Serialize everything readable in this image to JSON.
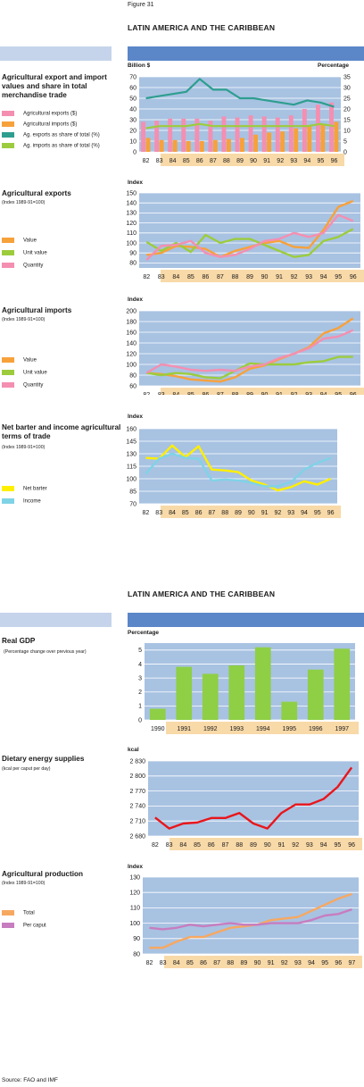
{
  "figure_label": "Figure 31",
  "region_title": "LATIN AMERICA AND THE CARIBBEAN",
  "region_title_2": "LATIN AMERICA AND THE CARIBBEAN",
  "source": "Source: FAO and IMF",
  "colors": {
    "band_blue": "#5b86c8",
    "band_pale": "#c5d4ea",
    "plot_bg": "#a8c2e2",
    "axis_bg": "#f8d9a8",
    "grid": "#ffffff"
  },
  "sections": {
    "trade": {
      "title": "Agricultural export and import values and share in total merchandise trade",
      "unit_left": "Billion $",
      "unit_right": "Percentage",
      "legend": [
        "Agricultural exports ($)",
        "Agricultural imports ($)",
        "Ag. exports as share of total (%)",
        "Ag. imports as share of total (%)"
      ],
      "legend_colors": [
        "#f48fb1",
        "#f7a13b",
        "#2e9e8f",
        "#9ccc3d"
      ]
    },
    "exports": {
      "title": "Agricultural exports",
      "subtitle": "(Index 1989-91=100)",
      "unit": "Index",
      "legend": [
        "Value",
        "Unit value",
        "Quantity"
      ],
      "legend_colors": [
        "#f7a13b",
        "#9ccc3d",
        "#f48fb1"
      ]
    },
    "imports": {
      "title": "Agricultural imports",
      "subtitle": "(Index 1989-91=100)",
      "unit": "Index",
      "legend": [
        "Value",
        "Unit value",
        "Quantity"
      ],
      "legend_colors": [
        "#f7a13b",
        "#9ccc3d",
        "#f48fb1"
      ]
    },
    "tot": {
      "title": "Net barter and income agricultural terms of trade",
      "subtitle": "(Index 1989-91=100)",
      "unit": "Index",
      "legend": [
        "Net barter",
        "Income"
      ],
      "legend_colors": [
        "#ffef00",
        "#7fd3e6"
      ]
    },
    "gdp": {
      "title": "Real GDP",
      "subtitle": "(Percentage change over previous year)",
      "unit": "Percentage"
    },
    "des": {
      "title": "Dietary energy supplies",
      "subtitle": "(kcal per caput per day)",
      "unit": "kcal"
    },
    "prod": {
      "title": "Agricultural production",
      "subtitle": "(Index 1989-91=100)",
      "unit": "Index",
      "legend": [
        "Total",
        "Per caput"
      ],
      "legend_colors": [
        "#f7a860",
        "#c77dc0"
      ]
    }
  },
  "chart_data": [
    {
      "id": "trade",
      "type": "bar",
      "categories": [
        "82",
        "83",
        "84",
        "85",
        "86",
        "87",
        "88",
        "89",
        "90",
        "91",
        "92",
        "93",
        "94",
        "95",
        "96"
      ],
      "ylim": [
        0,
        70
      ],
      "yticks": [
        0,
        10,
        20,
        30,
        40,
        50,
        60,
        70
      ],
      "y2lim": [
        0,
        35
      ],
      "y2ticks": [
        0,
        5,
        10,
        15,
        20,
        25,
        30,
        35
      ],
      "series": [
        {
          "name": "Agricultural exports ($)",
          "kind": "bar",
          "axis": "left",
          "color": "#f48fb1",
          "values": [
            28,
            29,
            31,
            31,
            31,
            29,
            33,
            32,
            34,
            33,
            32,
            34,
            40,
            44,
            46
          ]
        },
        {
          "name": "Agricultural imports ($)",
          "kind": "bar",
          "axis": "left",
          "color": "#f7a13b",
          "values": [
            13,
            11,
            11,
            10,
            10,
            11,
            12,
            13,
            16,
            18,
            19,
            22,
            24,
            26,
            28
          ]
        },
        {
          "name": "Ag. exports as share of total (%)",
          "kind": "line",
          "axis": "right",
          "color": "#2e9e8f",
          "values": [
            25,
            26,
            27,
            28,
            34,
            29,
            29,
            25,
            25,
            24,
            23,
            22,
            24,
            23,
            21
          ]
        },
        {
          "name": "Ag. imports as share of total (%)",
          "kind": "line",
          "axis": "right",
          "color": "#9ccc3d",
          "values": [
            11,
            12,
            12,
            12,
            13,
            12,
            12,
            12,
            12,
            12,
            12,
            12,
            12,
            13,
            12
          ]
        }
      ]
    },
    {
      "id": "exports",
      "type": "line",
      "categories": [
        "82",
        "83",
        "84",
        "85",
        "86",
        "87",
        "88",
        "89",
        "90",
        "91",
        "92",
        "93",
        "94",
        "95",
        "96"
      ],
      "ylim": [
        75,
        150
      ],
      "yticks": [
        80,
        90,
        100,
        110,
        120,
        130,
        140,
        150
      ],
      "series": [
        {
          "name": "Value",
          "color": "#f7a13b",
          "values": [
            88,
            90,
            97,
            96,
            94,
            86,
            92,
            96,
            100,
            102,
            96,
            95,
            113,
            136,
            142
          ]
        },
        {
          "name": "Unit value",
          "color": "#9ccc3d",
          "values": [
            101,
            92,
            100,
            91,
            108,
            100,
            104,
            104,
            98,
            92,
            86,
            88,
            102,
            106,
            114
          ]
        },
        {
          "name": "Quantity",
          "color": "#f48fb1",
          "values": [
            83,
            97,
            98,
            102,
            90,
            86,
            88,
            94,
            102,
            104,
            110,
            106,
            110,
            128,
            122
          ]
        }
      ]
    },
    {
      "id": "imports",
      "type": "line",
      "categories": [
        "82",
        "83",
        "84",
        "85",
        "86",
        "87",
        "88",
        "89",
        "90",
        "91",
        "92",
        "93",
        "94",
        "95",
        "96"
      ],
      "ylim": [
        60,
        200
      ],
      "yticks": [
        60,
        80,
        100,
        120,
        140,
        160,
        180,
        200
      ],
      "series": [
        {
          "name": "Value",
          "color": "#f7a13b",
          "values": [
            84,
            82,
            78,
            72,
            70,
            68,
            76,
            92,
            98,
            110,
            120,
            132,
            158,
            168,
            186
          ]
        },
        {
          "name": "Unit value",
          "color": "#9ccc3d",
          "values": [
            84,
            80,
            84,
            82,
            76,
            74,
            88,
            102,
            100,
            100,
            100,
            104,
            106,
            114,
            114
          ]
        },
        {
          "name": "Quantity",
          "color": "#f48fb1",
          "values": [
            84,
            100,
            96,
            90,
            88,
            90,
            88,
            96,
            100,
            112,
            120,
            130,
            148,
            152,
            164
          ]
        }
      ]
    },
    {
      "id": "tot",
      "type": "line",
      "categories": [
        "82",
        "83",
        "84",
        "85",
        "86",
        "87",
        "88",
        "89",
        "90",
        "91",
        "92",
        "93",
        "94",
        "95",
        "96"
      ],
      "ylim": [
        70,
        160
      ],
      "yticks": [
        70,
        85,
        100,
        115,
        130,
        145,
        160
      ],
      "series": [
        {
          "name": "Net barter",
          "color": "#ffef00",
          "values": [
            125,
            124,
            140,
            126,
            139,
            111,
            110,
            108,
            98,
            93,
            86,
            90,
            97,
            93,
            100
          ]
        },
        {
          "name": "Income",
          "color": "#7fd3e6",
          "values": [
            106,
            124,
            130,
            125,
            124,
            98,
            99,
            98,
            95,
            91,
            91,
            96,
            111,
            119,
            125
          ]
        }
      ]
    },
    {
      "id": "gdp",
      "type": "bar",
      "categories": [
        "1990",
        "1991",
        "1992",
        "1993",
        "1994",
        "1995",
        "1996",
        "1997"
      ],
      "ylim": [
        0,
        5.5
      ],
      "yticks": [
        0,
        1,
        2,
        3,
        4,
        5
      ],
      "series": [
        {
          "name": "Real GDP",
          "color": "#8ecf45",
          "values": [
            0.8,
            3.8,
            3.3,
            3.9,
            5.2,
            1.3,
            3.6,
            5.1
          ]
        }
      ]
    },
    {
      "id": "des",
      "type": "line",
      "categories": [
        "82",
        "83",
        "84",
        "85",
        "86",
        "87",
        "88",
        "89",
        "90",
        "91",
        "92",
        "93",
        "94",
        "95",
        "96"
      ],
      "ylim": [
        2680,
        2830
      ],
      "yticks": [
        2680,
        2710,
        2740,
        2770,
        2800,
        2830
      ],
      "ytick_labels": [
        "2 680",
        "2 710",
        "2 740",
        "2 770",
        "2 800",
        "2 830"
      ],
      "series": [
        {
          "name": "Dietary energy supplies",
          "color": "#e8161b",
          "values": [
            2717,
            2695,
            2705,
            2707,
            2716,
            2716,
            2726,
            2705,
            2695,
            2726,
            2743,
            2743,
            2754,
            2778,
            2817
          ]
        }
      ]
    },
    {
      "id": "prod",
      "type": "line",
      "categories": [
        "82",
        "83",
        "84",
        "85",
        "86",
        "87",
        "88",
        "89",
        "90",
        "91",
        "92",
        "93",
        "94",
        "95",
        "96",
        "97"
      ],
      "ylim": [
        80,
        130
      ],
      "yticks": [
        80,
        90,
        100,
        110,
        120,
        130
      ],
      "series": [
        {
          "name": "Total",
          "color": "#f7a860",
          "values": [
            84,
            84,
            88,
            91,
            91,
            94,
            97,
            98,
            99,
            102,
            103,
            104,
            108,
            112,
            116,
            119
          ]
        },
        {
          "name": "Per caput",
          "color": "#c77dc0",
          "values": [
            97,
            96,
            97,
            99,
            98,
            99,
            100,
            99,
            99,
            100,
            100,
            100,
            102,
            105,
            106,
            109
          ]
        }
      ]
    }
  ]
}
